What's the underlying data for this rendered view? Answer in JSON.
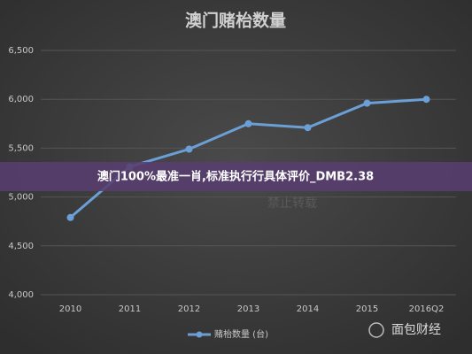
{
  "chart_data": {
    "type": "line",
    "title": "澳门赌枱数量",
    "categories": [
      "2010",
      "2011",
      "2012",
      "2013",
      "2014",
      "2015",
      "2016Q2"
    ],
    "series": [
      {
        "name": "赌枱数量 (台)",
        "color": "#6b9fd6",
        "values": [
          4790,
          5310,
          5490,
          5750,
          5710,
          5960,
          6000
        ]
      }
    ],
    "ylim": [
      4000,
      6500
    ],
    "yticks": [
      {
        "value": 4000,
        "label": "4,000"
      },
      {
        "value": 4500,
        "label": "4,500"
      },
      {
        "value": 5000,
        "label": "5,000"
      },
      {
        "value": 5500,
        "label": "5,500"
      },
      {
        "value": 6000,
        "label": "6,000"
      },
      {
        "value": 6500,
        "label": "6,500"
      }
    ],
    "grid": true
  },
  "banner": "澳门100%最准一肖,标准执行行具体评价_DMB2.38",
  "watermark": "面包财经",
  "faint_watermark": "禁止转载"
}
